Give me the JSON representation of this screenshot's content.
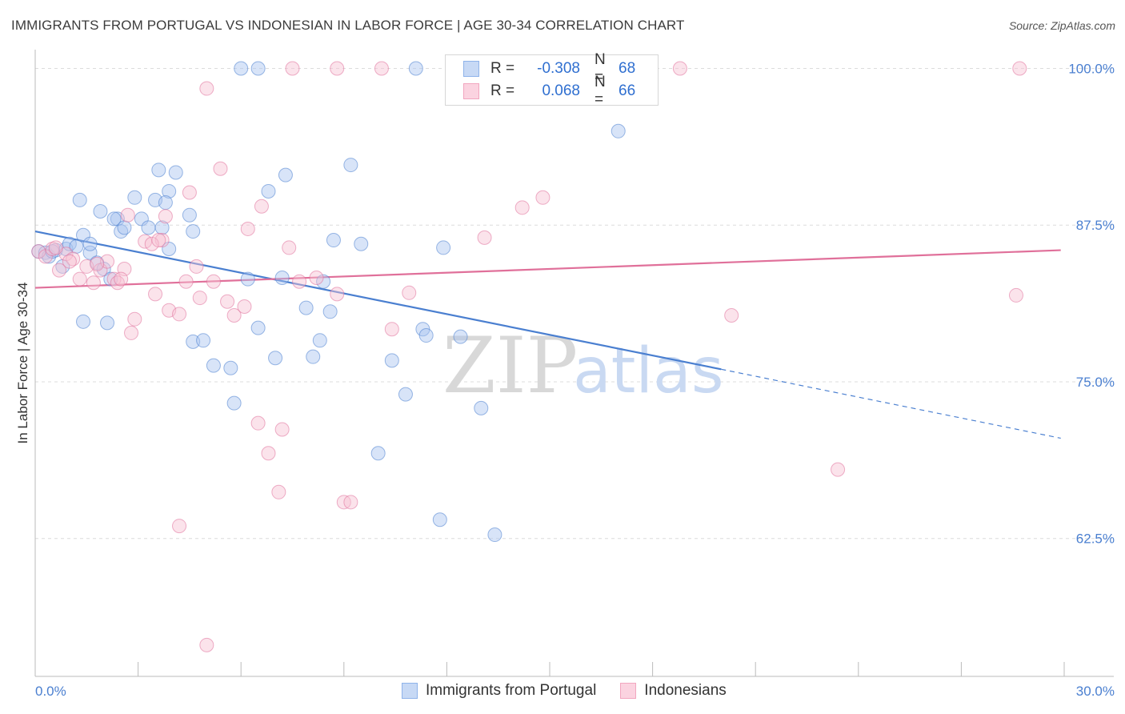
{
  "title": "IMMIGRANTS FROM PORTUGAL VS INDONESIAN IN LABOR FORCE | AGE 30-34 CORRELATION CHART",
  "source": "Source: ZipAtlas.com",
  "watermark": {
    "zip": "ZIP",
    "atlas": "atlas"
  },
  "legend": {
    "rows": [
      {
        "r_label": "R =",
        "r_value": "-0.308",
        "n_label": "N =",
        "n_value": "68",
        "color": "#8fb3ea",
        "fill": "#c7d9f5"
      },
      {
        "r_label": "R =",
        "r_value": "0.068",
        "n_label": "N =",
        "n_value": "66",
        "color": "#f2a6bf",
        "fill": "#fbd3e0"
      }
    ]
  },
  "bottom_legend": {
    "series1": "Immigrants from Portugal",
    "series2": "Indonesians"
  },
  "chart_data": {
    "type": "scatter",
    "title": "IMMIGRANTS FROM PORTUGAL VS INDONESIAN IN LABOR FORCE | AGE 30-34 CORRELATION CHART",
    "xlabel": "",
    "ylabel": "In Labor Force | Age 30-34",
    "xlim": [
      0,
      30
    ],
    "ylim": [
      51.5,
      101.5
    ],
    "x_tick_labels": [
      "0.0%",
      "30.0%"
    ],
    "y_ticks": [
      62.5,
      75.0,
      87.5,
      100.0
    ],
    "y_tick_labels": [
      "62.5%",
      "75.0%",
      "87.5%",
      "100.0%"
    ],
    "grid": true,
    "series": [
      {
        "name": "Immigrants from Portugal",
        "color": "#4a7fd0",
        "fill": "#a9c4ef",
        "trend": {
          "x": [
            0,
            20.0,
            29.9
          ],
          "y": [
            87.0,
            76.0,
            70.5
          ],
          "solid_until": 20.0
        },
        "points": [
          [
            0.1,
            85.4
          ],
          [
            0.3,
            85.3
          ],
          [
            0.4,
            85.0
          ],
          [
            0.6,
            85.5
          ],
          [
            0.8,
            84.2
          ],
          [
            0.9,
            85.6
          ],
          [
            1.0,
            86.0
          ],
          [
            1.2,
            85.8
          ],
          [
            1.4,
            86.7
          ],
          [
            1.6,
            85.3
          ],
          [
            1.8,
            84.5
          ],
          [
            2.0,
            84.0
          ],
          [
            2.2,
            83.2
          ],
          [
            1.6,
            86.0
          ],
          [
            1.3,
            89.5
          ],
          [
            1.9,
            88.6
          ],
          [
            2.4,
            88.0
          ],
          [
            2.5,
            87.0
          ],
          [
            2.9,
            89.7
          ],
          [
            3.1,
            88.0
          ],
          [
            3.3,
            87.3
          ],
          [
            3.5,
            89.5
          ],
          [
            3.7,
            87.3
          ],
          [
            3.9,
            85.6
          ],
          [
            3.6,
            91.9
          ],
          [
            3.9,
            90.2
          ],
          [
            4.1,
            91.7
          ],
          [
            4.5,
            88.3
          ],
          [
            4.6,
            87.0
          ],
          [
            2.3,
            88.0
          ],
          [
            1.4,
            79.8
          ],
          [
            2.1,
            79.7
          ],
          [
            4.6,
            78.2
          ],
          [
            4.9,
            78.3
          ],
          [
            5.2,
            76.3
          ],
          [
            5.7,
            76.1
          ],
          [
            5.8,
            73.3
          ],
          [
            6.2,
            83.2
          ],
          [
            6.5,
            79.3
          ],
          [
            6.8,
            90.2
          ],
          [
            7.0,
            76.9
          ],
          [
            7.2,
            83.3
          ],
          [
            7.3,
            91.5
          ],
          [
            7.9,
            80.9
          ],
          [
            8.1,
            77.0
          ],
          [
            8.3,
            78.3
          ],
          [
            8.6,
            80.6
          ],
          [
            8.7,
            86.3
          ],
          [
            9.2,
            92.3
          ],
          [
            9.5,
            86.0
          ],
          [
            10.0,
            69.3
          ],
          [
            10.4,
            76.7
          ],
          [
            10.8,
            74.0
          ],
          [
            11.3,
            79.2
          ],
          [
            11.4,
            78.7
          ],
          [
            11.8,
            64.0
          ],
          [
            11.9,
            85.7
          ],
          [
            12.4,
            78.6
          ],
          [
            13.0,
            72.9
          ],
          [
            13.4,
            62.8
          ],
          [
            6.0,
            100.0
          ],
          [
            6.5,
            100.0
          ],
          [
            11.1,
            100.0
          ],
          [
            17.0,
            95.0
          ],
          [
            3.8,
            89.3
          ],
          [
            8.4,
            83.0
          ],
          [
            2.6,
            87.3
          ],
          [
            0.5,
            85.4
          ]
        ]
      },
      {
        "name": "Indonesians",
        "color": "#e0709a",
        "fill": "#f7c0d3",
        "trend": {
          "x": [
            0,
            29.9
          ],
          "y": [
            82.5,
            85.5
          ]
        },
        "points": [
          [
            0.1,
            85.4
          ],
          [
            0.3,
            85.0
          ],
          [
            0.5,
            85.6
          ],
          [
            0.7,
            83.9
          ],
          [
            0.9,
            85.2
          ],
          [
            1.1,
            84.8
          ],
          [
            1.3,
            83.2
          ],
          [
            1.5,
            84.2
          ],
          [
            1.7,
            82.9
          ],
          [
            1.9,
            83.9
          ],
          [
            2.1,
            84.6
          ],
          [
            2.3,
            83.2
          ],
          [
            2.6,
            84.0
          ],
          [
            2.7,
            88.3
          ],
          [
            2.9,
            80.0
          ],
          [
            2.8,
            78.9
          ],
          [
            3.2,
            86.2
          ],
          [
            3.5,
            82.0
          ],
          [
            3.7,
            86.3
          ],
          [
            3.9,
            80.7
          ],
          [
            3.8,
            88.2
          ],
          [
            4.2,
            80.4
          ],
          [
            4.4,
            83.0
          ],
          [
            4.5,
            90.1
          ],
          [
            4.7,
            84.2
          ],
          [
            4.8,
            81.7
          ],
          [
            5.0,
            98.4
          ],
          [
            5.2,
            83.0
          ],
          [
            5.4,
            92.0
          ],
          [
            5.6,
            81.4
          ],
          [
            5.8,
            80.3
          ],
          [
            6.1,
            81.0
          ],
          [
            6.2,
            87.2
          ],
          [
            6.5,
            71.7
          ],
          [
            6.6,
            89.0
          ],
          [
            6.8,
            69.3
          ],
          [
            7.1,
            66.2
          ],
          [
            7.2,
            71.2
          ],
          [
            7.4,
            85.7
          ],
          [
            7.7,
            83.0
          ],
          [
            8.2,
            83.3
          ],
          [
            8.8,
            82.0
          ],
          [
            9.0,
            65.4
          ],
          [
            9.2,
            65.4
          ],
          [
            10.4,
            79.2
          ],
          [
            10.9,
            82.1
          ],
          [
            4.2,
            63.5
          ],
          [
            5.0,
            54.0
          ],
          [
            13.1,
            86.5
          ],
          [
            14.2,
            88.9
          ],
          [
            14.8,
            89.7
          ],
          [
            20.3,
            80.3
          ],
          [
            23.4,
            68.0
          ],
          [
            28.6,
            81.9
          ],
          [
            7.5,
            100.0
          ],
          [
            8.8,
            100.0
          ],
          [
            10.1,
            100.0
          ],
          [
            18.8,
            100.0
          ],
          [
            28.7,
            100.0
          ],
          [
            3.4,
            86.0
          ],
          [
            2.4,
            82.9
          ],
          [
            1.8,
            84.4
          ],
          [
            0.6,
            85.7
          ],
          [
            1.0,
            84.6
          ],
          [
            2.5,
            83.2
          ],
          [
            3.6,
            86.3
          ]
        ]
      }
    ]
  }
}
